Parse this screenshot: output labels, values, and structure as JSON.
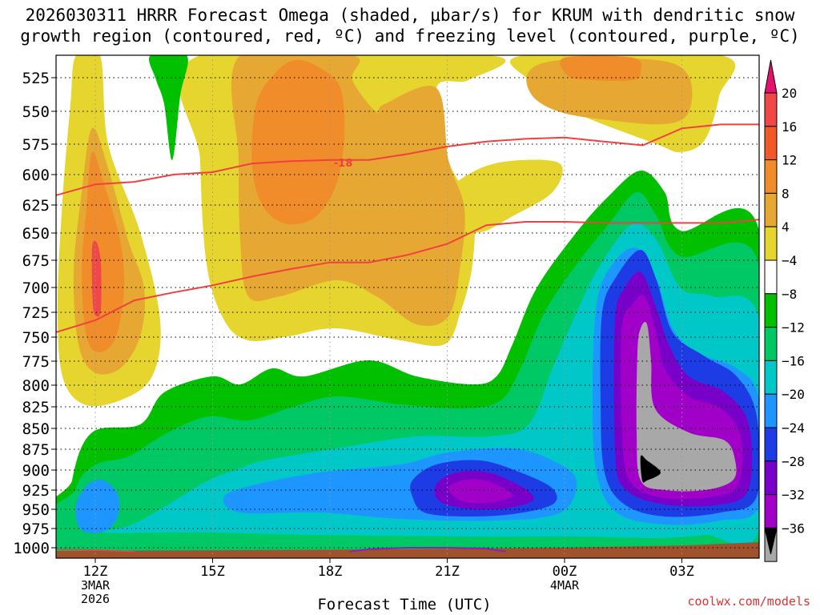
{
  "title_line1": "2026030311 HRRR Forecast Omega (shaded, μbar/s) for KRUM with dendritic snow",
  "title_line2": "growth region (contoured, red, ºC) and freezing level (contoured, purple, ºC)",
  "watermark": "coolwx.com/models",
  "chart_data": {
    "type": "heatmap",
    "title": "2026030311 HRRR Forecast Omega (shaded, μbar/s) for KRUM with dendritic snow growth region (contoured, red, ºC) and freezing level (contoured, purple, ºC)",
    "xlabel": "Forecast Time (UTC)",
    "ylabel": "",
    "y_range_hPa": [
      1010,
      508
    ],
    "x_range_hours": [
      11,
      29
    ],
    "y_ticks": [
      525,
      550,
      575,
      600,
      625,
      650,
      675,
      700,
      725,
      750,
      775,
      800,
      825,
      850,
      875,
      900,
      925,
      950,
      975,
      1000
    ],
    "x_ticks": [
      {
        "hour": 12,
        "lines": [
          "12Z",
          "3MAR",
          "2026"
        ]
      },
      {
        "hour": 15,
        "lines": [
          "15Z"
        ]
      },
      {
        "hour": 18,
        "lines": [
          "18Z"
        ]
      },
      {
        "hour": 21,
        "lines": [
          "21Z"
        ]
      },
      {
        "hour": 24,
        "lines": [
          "00Z",
          "4MAR"
        ]
      },
      {
        "hour": 27,
        "lines": [
          "03Z"
        ]
      }
    ],
    "colorbar_labels": [
      "20",
      "16",
      "12",
      "8",
      "4",
      "−4",
      "−8",
      "−12",
      "−16",
      "−20",
      "−24",
      "−28",
      "−32",
      "−36"
    ],
    "colorbar_colors": [
      "#e8106e",
      "#f04848",
      "#f05a2a",
      "#f08c2a",
      "#e6a832",
      "#e6d52e",
      "#ffffff",
      "#00c000",
      "#00c864",
      "#00c8c8",
      "#1e96ff",
      "#1e3ce6",
      "#7800c8",
      "#a000c8",
      "#a8a8a8",
      "#000000"
    ],
    "contour_label": "-18",
    "dgz_top_-18C": {
      "hours": [
        11,
        12,
        13,
        14,
        15,
        16,
        17,
        18,
        19,
        20,
        21,
        22,
        23,
        24,
        25,
        26,
        27,
        28,
        29
      ],
      "pressure_hPa": [
        617,
        608,
        606,
        600,
        598,
        591,
        589,
        588,
        588,
        583,
        577,
        573,
        571,
        570,
        573,
        576,
        563,
        560,
        560
      ]
    },
    "dgz_bottom_-12C": {
      "hours": [
        11,
        12,
        13,
        14,
        15,
        16,
        17,
        18,
        19,
        20,
        21,
        22,
        23,
        24,
        25,
        26,
        27,
        28,
        29
      ],
      "pressure_hPa": [
        745,
        733,
        713,
        705,
        698,
        690,
        683,
        677,
        677,
        670,
        660,
        643,
        640,
        640,
        641,
        641,
        641,
        641,
        638
      ]
    },
    "freezing_level_0C": {
      "hours": [
        18.5,
        19,
        20,
        21,
        22,
        22.5
      ],
      "pressure_hPa": [
        1005,
        1002,
        1000,
        1000,
        1001,
        1005
      ]
    },
    "omega_regions": [
      {
        "name": "upper-left plume",
        "level": "4 to 8",
        "hours": [
          11.5,
          13.3
        ],
        "pressure_hPa": [
          510,
          830
        ]
      },
      {
        "name": "upper-left core",
        "level": "16 to 20",
        "hours": [
          11.9,
          12.1
        ],
        "pressure_hPa": [
          670,
          730
        ]
      },
      {
        "name": "mid ascent block",
        "level": "12 to 16",
        "hours": [
          16,
          19
        ],
        "pressure_hPa": [
          510,
          720
        ]
      },
      {
        "name": "upper-right ascent",
        "level": "12 to 16",
        "hours": [
          23.9,
          26.8
        ],
        "pressure_hPa": [
          510,
          565
        ]
      },
      {
        "name": "low-level descent",
        "level": "-20 to -32",
        "hours": [
          21,
          23.5
        ],
        "pressure_hPa": [
          880,
          950
        ]
      },
      {
        "name": "right descent core",
        "level": "-32 to -36",
        "hours": [
          26,
          28.5
        ],
        "pressure_hPa": [
          750,
          935
        ]
      }
    ]
  }
}
